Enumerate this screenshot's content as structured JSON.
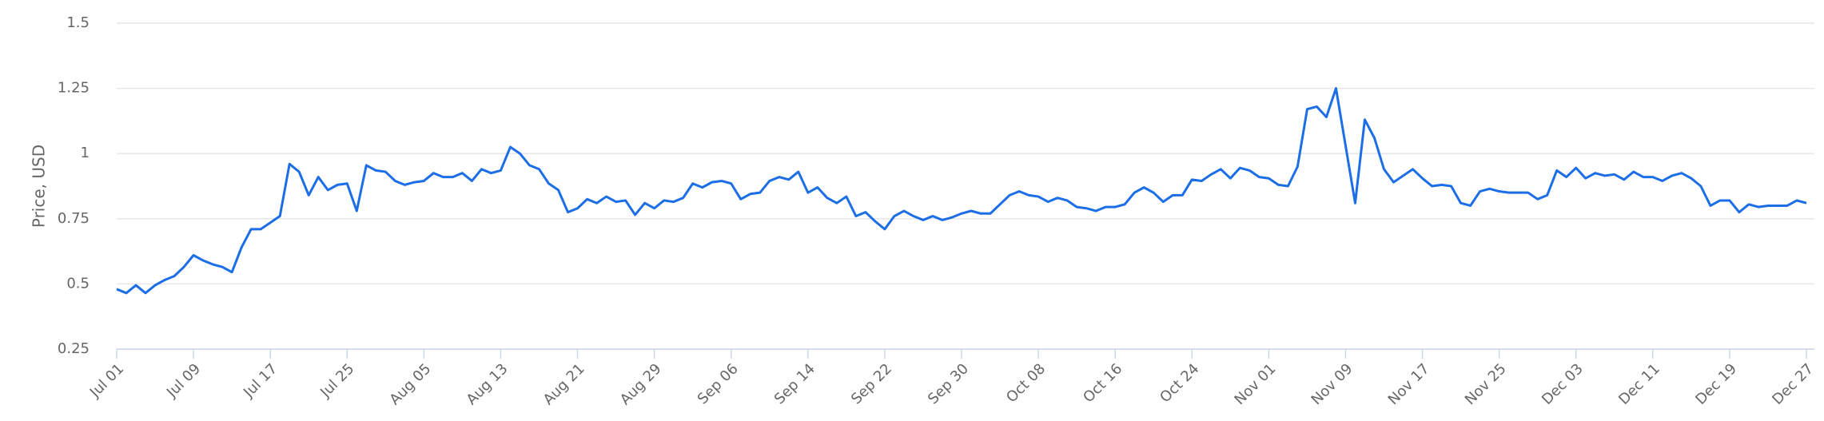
{
  "chart_data": {
    "type": "line",
    "y_label": "Price, USD",
    "categories": [
      "Jul 01",
      null,
      null,
      null,
      null,
      null,
      null,
      null,
      "Jul 09",
      null,
      null,
      null,
      null,
      null,
      null,
      null,
      "Jul 17",
      null,
      null,
      null,
      null,
      null,
      null,
      null,
      "Jul 25",
      null,
      null,
      null,
      null,
      null,
      null,
      null,
      "Aug 05",
      null,
      null,
      null,
      null,
      null,
      null,
      null,
      "Aug 13",
      null,
      null,
      null,
      null,
      null,
      null,
      null,
      "Aug 21",
      null,
      null,
      null,
      null,
      null,
      null,
      null,
      "Aug 29",
      null,
      null,
      null,
      null,
      null,
      null,
      null,
      "Sep 06",
      null,
      null,
      null,
      null,
      null,
      null,
      null,
      "Sep 14",
      null,
      null,
      null,
      null,
      null,
      null,
      null,
      "Sep 22",
      null,
      null,
      null,
      null,
      null,
      null,
      null,
      "Sep 30",
      null,
      null,
      null,
      null,
      null,
      null,
      null,
      "Oct 08",
      null,
      null,
      null,
      null,
      null,
      null,
      null,
      "Oct 16",
      null,
      null,
      null,
      null,
      null,
      null,
      null,
      "Oct 24",
      null,
      null,
      null,
      null,
      null,
      null,
      null,
      "Nov 01",
      null,
      null,
      null,
      null,
      null,
      null,
      null,
      "Nov 09",
      null,
      null,
      null,
      null,
      null,
      null,
      null,
      "Nov 17",
      null,
      null,
      null,
      null,
      null,
      null,
      null,
      "Nov 25",
      null,
      null,
      null,
      null,
      null,
      null,
      null,
      "Dec 03",
      null,
      null,
      null,
      null,
      null,
      null,
      null,
      "Dec 11",
      null,
      null,
      null,
      null,
      null,
      null,
      null,
      "Dec 19",
      null,
      null,
      null,
      null,
      null,
      null,
      null,
      "Dec 27"
    ],
    "values": [
      0.48,
      0.465,
      0.495,
      0.465,
      0.495,
      0.515,
      0.53,
      0.565,
      0.61,
      0.59,
      0.575,
      0.565,
      0.545,
      0.64,
      0.71,
      0.71,
      0.735,
      0.76,
      0.96,
      0.93,
      0.84,
      0.91,
      0.86,
      0.88,
      0.885,
      0.78,
      0.955,
      0.935,
      0.93,
      0.895,
      0.88,
      0.89,
      0.895,
      0.925,
      0.91,
      0.91,
      0.925,
      0.895,
      0.94,
      0.925,
      0.935,
      1.025,
      1.0,
      0.955,
      0.94,
      0.885,
      0.86,
      0.775,
      0.79,
      0.825,
      0.81,
      0.835,
      0.815,
      0.82,
      0.765,
      0.81,
      0.79,
      0.82,
      0.815,
      0.83,
      0.885,
      0.87,
      0.89,
      0.895,
      0.885,
      0.825,
      0.845,
      0.85,
      0.895,
      0.91,
      0.9,
      0.93,
      0.85,
      0.87,
      0.83,
      0.81,
      0.835,
      0.76,
      0.775,
      0.74,
      0.71,
      0.76,
      0.78,
      0.76,
      0.745,
      0.76,
      0.745,
      0.755,
      0.77,
      0.78,
      0.77,
      0.77,
      0.805,
      0.84,
      0.855,
      0.84,
      0.835,
      0.815,
      0.83,
      0.82,
      0.795,
      0.79,
      0.78,
      0.795,
      0.795,
      0.805,
      0.85,
      0.87,
      0.85,
      0.815,
      0.84,
      0.84,
      0.9,
      0.895,
      0.92,
      0.94,
      0.905,
      0.945,
      0.935,
      0.91,
      0.905,
      0.88,
      0.875,
      0.95,
      1.17,
      1.18,
      1.14,
      1.25,
      1.03,
      0.81,
      1.13,
      1.06,
      0.94,
      0.89,
      0.915,
      0.94,
      0.905,
      0.875,
      0.88,
      0.875,
      0.81,
      0.8,
      0.855,
      0.865,
      0.855,
      0.85,
      0.85,
      0.85,
      0.825,
      0.84,
      0.935,
      0.91,
      0.945,
      0.905,
      0.925,
      0.915,
      0.92,
      0.9,
      0.93,
      0.91,
      0.91,
      0.895,
      0.915,
      0.925,
      0.905,
      0.875,
      0.8,
      0.82,
      0.82,
      0.775,
      0.805,
      0.795,
      0.8,
      0.8,
      0.8,
      0.82,
      0.81
    ],
    "color": "#1c6ee6",
    "ylim": [
      0.25,
      1.5
    ],
    "yticks": [
      0.25,
      0.5,
      0.75,
      1,
      1.25,
      1.5
    ],
    "grid": true
  }
}
